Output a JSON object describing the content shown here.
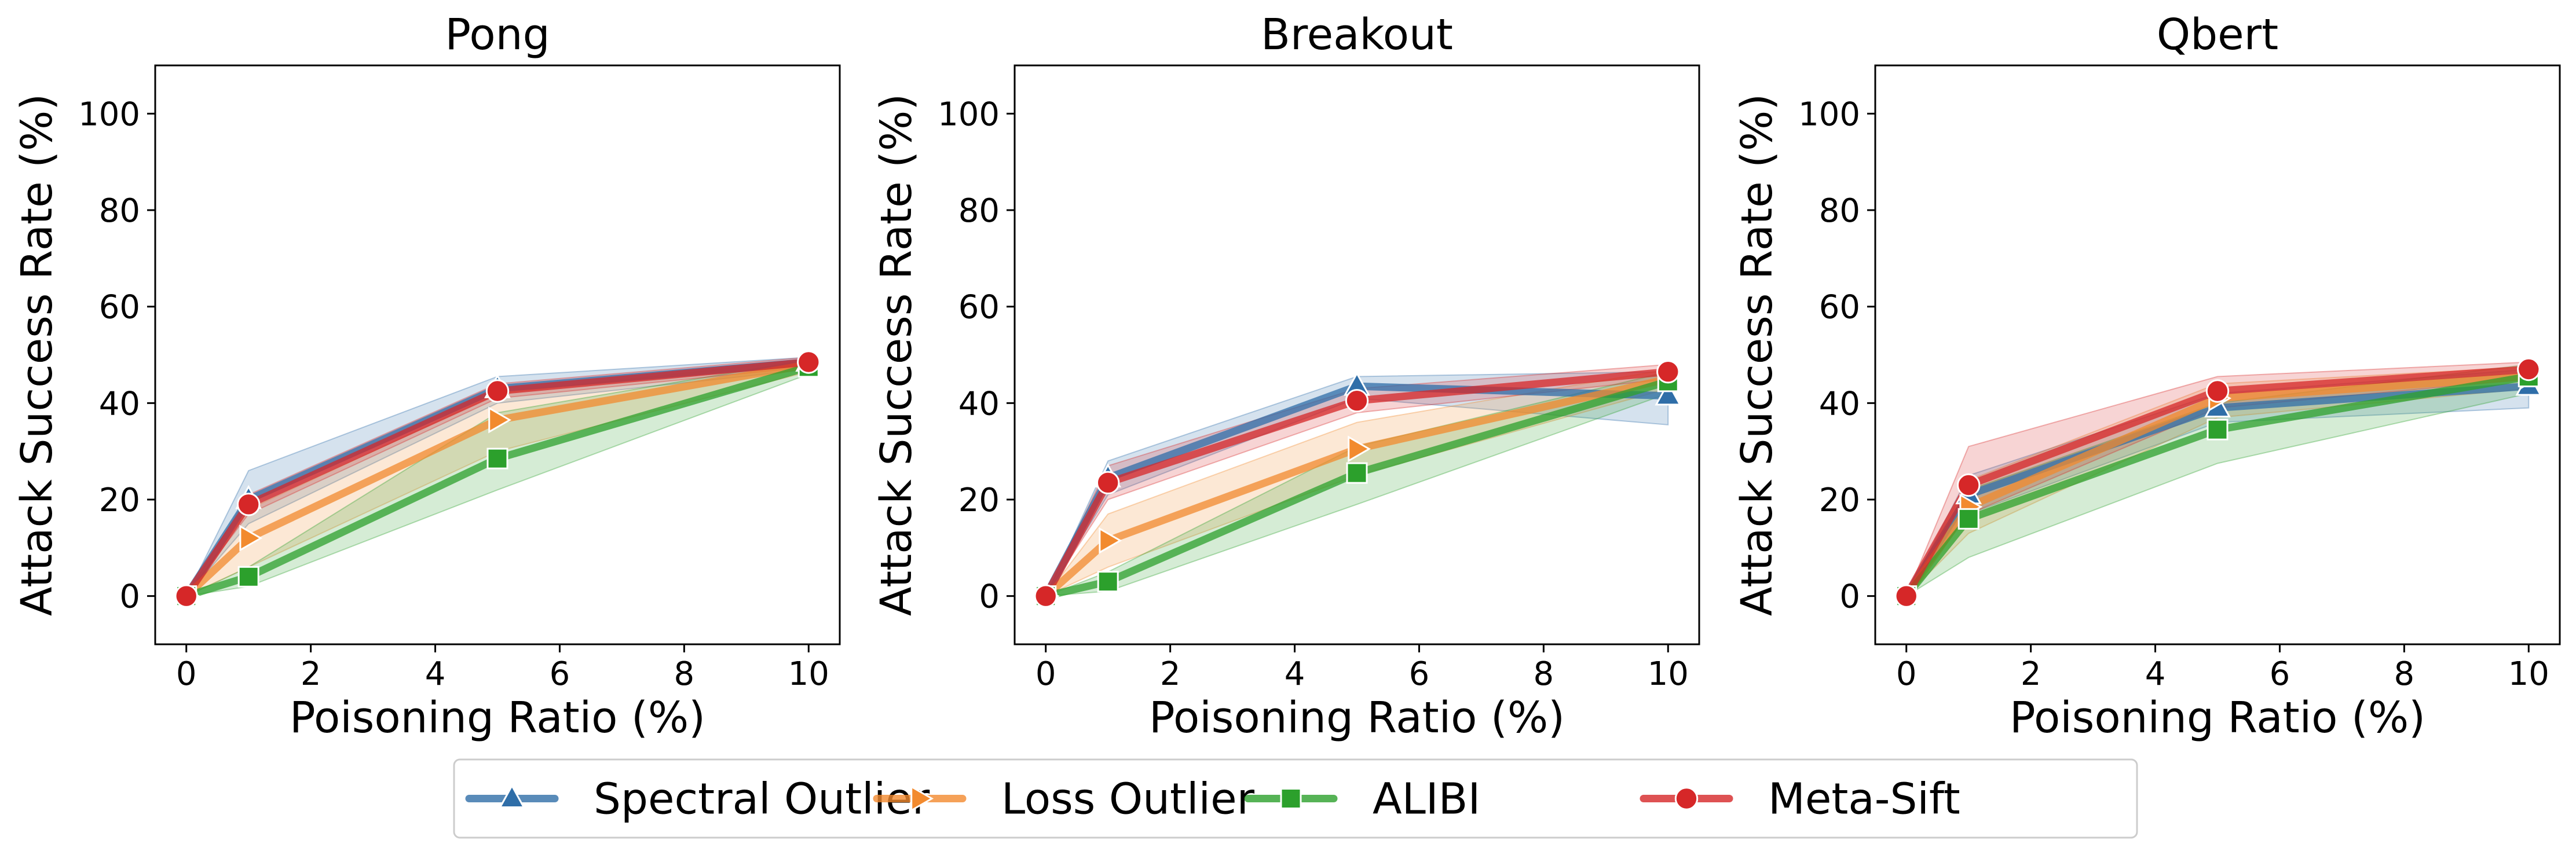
{
  "chart_data": [
    {
      "type": "line",
      "title": "Pong",
      "xlabel": "Poisoning Ratio (%)",
      "ylabel": "Attack Success Rate (%)",
      "xlim": [
        -0.5,
        10.5
      ],
      "ylim": [
        -10,
        110
      ],
      "xticks": [
        0,
        2,
        4,
        6,
        8,
        10
      ],
      "yticks": [
        0,
        20,
        40,
        60,
        80,
        100
      ],
      "x": [
        0,
        1,
        5,
        10
      ],
      "grid": false,
      "series": [
        {
          "name": "Spectral Outlier",
          "values": [
            0,
            20,
            43,
            48.5
          ],
          "lower": [
            0,
            15,
            40,
            47
          ],
          "upper": [
            0,
            26,
            45.5,
            49.5
          ]
        },
        {
          "name": "Loss Outlier",
          "values": [
            0,
            12,
            36.5,
            48
          ],
          "lower": [
            0,
            6,
            30,
            46.5
          ],
          "upper": [
            0,
            18,
            42,
            49
          ]
        },
        {
          "name": "ALIBI",
          "values": [
            0,
            4,
            28.5,
            47.5
          ],
          "lower": [
            0,
            2,
            22,
            46
          ],
          "upper": [
            0,
            6,
            38,
            49
          ]
        },
        {
          "name": "Meta-Sift",
          "values": [
            0,
            19,
            42.5,
            48.5
          ],
          "lower": [
            0,
            17,
            41,
            47.5
          ],
          "upper": [
            0,
            21,
            44,
            49.5
          ]
        }
      ]
    },
    {
      "type": "line",
      "title": "Breakout",
      "xlabel": "Poisoning Ratio (%)",
      "ylabel": "Attack Success Rate (%)",
      "xlim": [
        -0.5,
        10.5
      ],
      "ylim": [
        -10,
        110
      ],
      "xticks": [
        0,
        2,
        4,
        6,
        8,
        10
      ],
      "yticks": [
        0,
        20,
        40,
        60,
        80,
        100
      ],
      "x": [
        0,
        1,
        5,
        10
      ],
      "grid": false,
      "series": [
        {
          "name": "Spectral Outlier",
          "values": [
            0,
            24.5,
            43.5,
            41.5
          ],
          "lower": [
            0,
            21,
            41,
            35.5
          ],
          "upper": [
            0,
            28,
            45.5,
            46.5
          ]
        },
        {
          "name": "Loss Outlier",
          "values": [
            0,
            11.5,
            30.5,
            45
          ],
          "lower": [
            0,
            6,
            25,
            43
          ],
          "upper": [
            0,
            17,
            36,
            47
          ]
        },
        {
          "name": "ALIBI",
          "values": [
            0,
            3,
            25.5,
            44.5
          ],
          "lower": [
            0,
            1,
            19,
            42
          ],
          "upper": [
            0,
            5,
            31,
            46.5
          ]
        },
        {
          "name": "Meta-Sift",
          "values": [
            0,
            23.5,
            40.5,
            46.5
          ],
          "lower": [
            0,
            20,
            38,
            45
          ],
          "upper": [
            0,
            27,
            43,
            48
          ]
        }
      ]
    },
    {
      "type": "line",
      "title": "Qbert",
      "xlabel": "Poisoning Ratio (%)",
      "ylabel": "Attack Success Rate (%)",
      "xlim": [
        -0.5,
        10.5
      ],
      "ylim": [
        -10,
        110
      ],
      "xticks": [
        0,
        2,
        4,
        6,
        8,
        10
      ],
      "yticks": [
        0,
        20,
        40,
        60,
        80,
        100
      ],
      "x": [
        0,
        1,
        5,
        10
      ],
      "grid": false,
      "series": [
        {
          "name": "Spectral Outlier",
          "values": [
            0,
            21,
            39,
            43.5
          ],
          "lower": [
            0,
            17,
            36,
            39
          ],
          "upper": [
            0,
            25,
            42,
            47
          ]
        },
        {
          "name": "Loss Outlier",
          "values": [
            0,
            18.5,
            41,
            45.5
          ],
          "lower": [
            0,
            13,
            37,
            43
          ],
          "upper": [
            0,
            24,
            44,
            47.5
          ]
        },
        {
          "name": "ALIBI",
          "values": [
            0,
            16,
            34.5,
            45.5
          ],
          "lower": [
            0,
            8,
            27.5,
            42
          ],
          "upper": [
            0,
            22,
            40,
            48
          ]
        },
        {
          "name": "Meta-Sift",
          "values": [
            0,
            23,
            42.5,
            47
          ],
          "lower": [
            0,
            17,
            39,
            45
          ],
          "upper": [
            0,
            31,
            45.5,
            48.5
          ]
        }
      ]
    }
  ],
  "legend": {
    "placement": "bottom-center",
    "entries": [
      {
        "label": "Spectral Outlier",
        "color": "#2f6ea8",
        "marker": "triangle"
      },
      {
        "label": "Loss Outlier",
        "color": "#f28a2e",
        "marker": "triangle-right"
      },
      {
        "label": "ALIBI",
        "color": "#2ca02c",
        "marker": "square"
      },
      {
        "label": "Meta-Sift",
        "color": "#d62728",
        "marker": "circle"
      }
    ]
  },
  "colors": {
    "Spectral Outlier": "#2f6ea8",
    "Loss Outlier": "#f28a2e",
    "ALIBI": "#2ca02c",
    "Meta-Sift": "#d62728"
  }
}
